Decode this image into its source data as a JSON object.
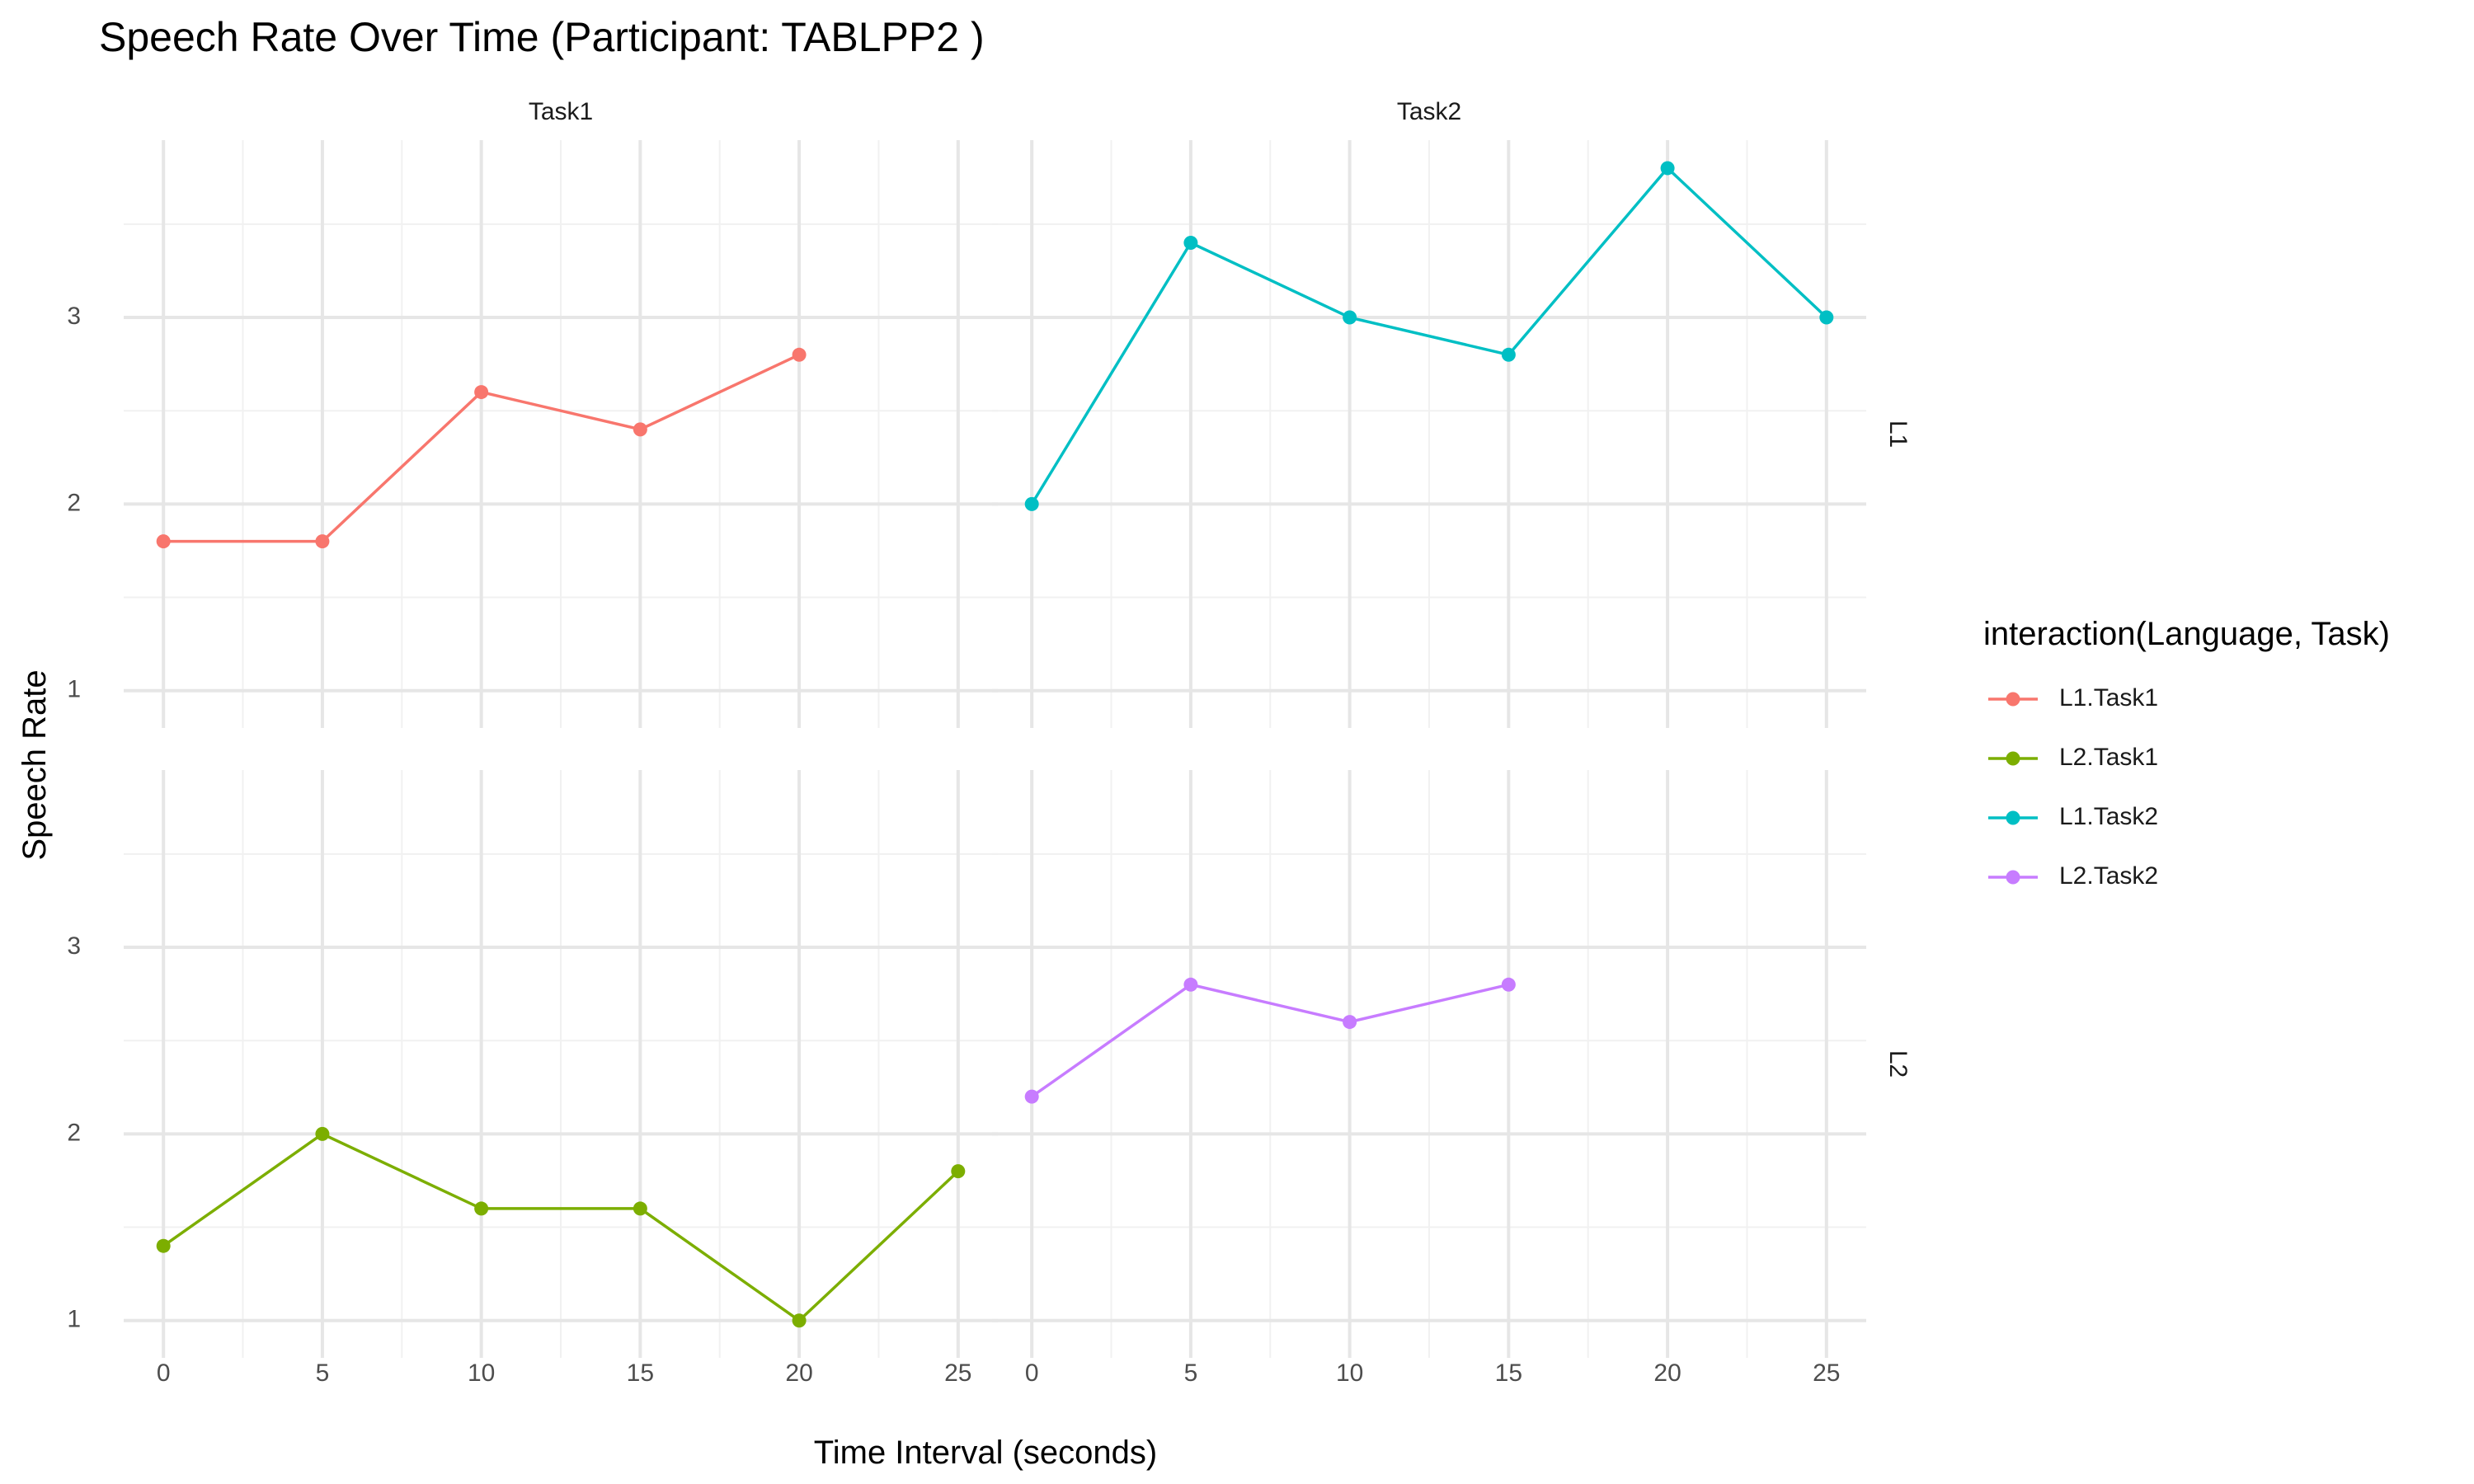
{
  "chart_data": {
    "type": "line",
    "title": "Speech Rate Over Time (Participant: TABLPP2 )",
    "xlabel": "Time Interval (seconds)",
    "ylabel": "Speech Rate",
    "xlim": [
      -1.25,
      26.25
    ],
    "ylim": [
      0.8,
      3.95
    ],
    "x_ticks": [
      0,
      5,
      10,
      15,
      20,
      25
    ],
    "y_ticks": [
      1,
      2,
      3
    ],
    "grid": true,
    "facet_columns": [
      "Task1",
      "Task2"
    ],
    "facet_rows": [
      "L1",
      "L2"
    ],
    "legend": {
      "title": "interaction(Language, Task)",
      "position": "right",
      "entries": [
        "L1.Task1",
        "L2.Task1",
        "L1.Task2",
        "L2.Task2"
      ]
    },
    "series": [
      {
        "name": "L1.Task1",
        "color": "#F8766D",
        "row": 0,
        "col": 0,
        "x": [
          0,
          5,
          10,
          15,
          20
        ],
        "values": [
          1.8,
          1.8,
          2.6,
          2.4,
          2.8
        ]
      },
      {
        "name": "L2.Task1",
        "color": "#7CAE00",
        "row": 1,
        "col": 0,
        "x": [
          0,
          5,
          10,
          15,
          20,
          25
        ],
        "values": [
          1.4,
          2.0,
          1.6,
          1.6,
          1.0,
          1.8
        ]
      },
      {
        "name": "L1.Task2",
        "color": "#00BFC4",
        "row": 0,
        "col": 1,
        "x": [
          0,
          5,
          10,
          15,
          20,
          25
        ],
        "values": [
          2.0,
          3.4,
          3.0,
          2.8,
          3.8,
          3.0
        ]
      },
      {
        "name": "L2.Task2",
        "color": "#C77CFF",
        "row": 1,
        "col": 1,
        "x": [
          0,
          5,
          10,
          15
        ],
        "values": [
          2.2,
          2.8,
          2.6,
          2.8
        ]
      }
    ]
  }
}
